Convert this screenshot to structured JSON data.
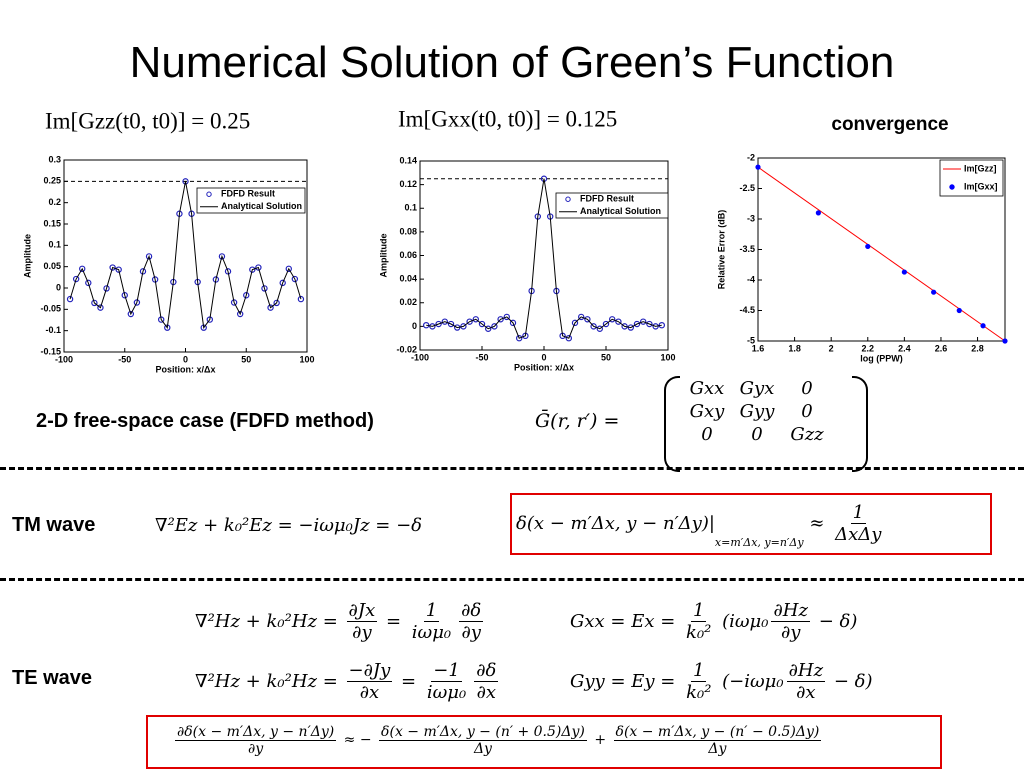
{
  "title": "Numerical Solution of Green’s Function",
  "chart_data": [
    {
      "type": "line",
      "title": "Im[Gzz(t0, t0)] = 0.25",
      "x_label": "Position: x/Δx",
      "y_label": "Amplitude",
      "xlim": [
        -100,
        100
      ],
      "xticks": [
        -100,
        -50,
        0,
        50,
        100
      ],
      "ylim": [
        -0.15,
        0.3
      ],
      "yticks": [
        -0.15,
        -0.1,
        -0.05,
        0,
        0.05,
        0.1,
        0.15,
        0.2,
        0.25,
        0.3
      ],
      "reference_line": 0.25,
      "grid": false,
      "legend": "upper right",
      "series": [
        {
          "name": "FDFD Result",
          "mode": "markers",
          "marker": "open-circle",
          "color": "#2222bb",
          "x": [
            -95,
            -90,
            -85,
            -80,
            -75,
            -70,
            -65,
            -60,
            -55,
            -50,
            -45,
            -40,
            -35,
            -30,
            -25,
            -20,
            -15,
            -10,
            -5,
            0,
            5,
            10,
            15,
            20,
            25,
            30,
            35,
            40,
            45,
            50,
            55,
            60,
            65,
            70,
            75,
            80,
            85,
            90,
            95
          ],
          "values": [
            -0.026,
            0.021,
            0.045,
            0.012,
            -0.035,
            -0.046,
            -0.001,
            0.048,
            0.043,
            -0.017,
            -0.061,
            -0.034,
            0.039,
            0.074,
            0.02,
            -0.074,
            -0.093,
            0.014,
            0.174,
            0.25,
            0.174,
            0.014,
            -0.093,
            -0.074,
            0.02,
            0.074,
            0.039,
            -0.034,
            -0.061,
            -0.017,
            0.043,
            0.048,
            -0.001,
            -0.046,
            -0.035,
            0.012,
            0.045,
            0.021,
            -0.026
          ]
        },
        {
          "name": "Analytical Solution",
          "mode": "line",
          "color": "#000000",
          "x": [
            -95,
            -90,
            -85,
            -80,
            -75,
            -70,
            -65,
            -60,
            -55,
            -50,
            -45,
            -40,
            -35,
            -30,
            -25,
            -20,
            -15,
            -10,
            -5,
            0,
            5,
            10,
            15,
            20,
            25,
            30,
            35,
            40,
            45,
            50,
            55,
            60,
            65,
            70,
            75,
            80,
            85,
            90,
            95
          ],
          "values": [
            -0.026,
            0.021,
            0.045,
            0.012,
            -0.035,
            -0.046,
            -0.001,
            0.048,
            0.043,
            -0.017,
            -0.061,
            -0.034,
            0.039,
            0.074,
            0.02,
            -0.074,
            -0.093,
            0.014,
            0.174,
            0.25,
            0.174,
            0.014,
            -0.093,
            -0.074,
            0.02,
            0.074,
            0.039,
            -0.034,
            -0.061,
            -0.017,
            0.043,
            0.048,
            -0.001,
            -0.046,
            -0.035,
            0.012,
            0.045,
            0.021,
            -0.026
          ]
        }
      ]
    },
    {
      "type": "line",
      "title": "Im[Gxx(t0, t0)] = 0.125",
      "x_label": "Position: x/Δx",
      "y_label": "Amplitude",
      "xlim": [
        -100,
        100
      ],
      "xticks": [
        -100,
        -50,
        0,
        50,
        100
      ],
      "ylim": [
        -0.02,
        0.14
      ],
      "yticks": [
        -0.02,
        0,
        0.02,
        0.04,
        0.06,
        0.08,
        0.1,
        0.12,
        0.14
      ],
      "reference_line": 0.125,
      "grid": false,
      "legend": "upper right",
      "series": [
        {
          "name": "FDFD Result",
          "mode": "markers",
          "marker": "open-circle",
          "color": "#2222bb",
          "x": [
            -95,
            -90,
            -85,
            -80,
            -75,
            -70,
            -65,
            -60,
            -55,
            -50,
            -45,
            -40,
            -35,
            -30,
            -25,
            -20,
            -15,
            -10,
            -5,
            0,
            5,
            10,
            15,
            20,
            25,
            30,
            35,
            40,
            45,
            50,
            55,
            60,
            65,
            70,
            75,
            80,
            85,
            90,
            95
          ],
          "values": [
            0.001,
            0,
            0.002,
            0.004,
            0.002,
            -0.001,
            0,
            0.004,
            0.006,
            0.002,
            -0.002,
            0,
            0.006,
            0.008,
            0.003,
            -0.01,
            -0.008,
            0.03,
            0.093,
            0.125,
            0.093,
            0.03,
            -0.008,
            -0.01,
            0.003,
            0.008,
            0.006,
            0,
            -0.002,
            0.002,
            0.006,
            0.004,
            0,
            -0.001,
            0.002,
            0.004,
            0.002,
            0,
            0.001
          ]
        },
        {
          "name": "Analytical Solution",
          "mode": "line",
          "color": "#000000",
          "x": [
            -95,
            -90,
            -85,
            -80,
            -75,
            -70,
            -65,
            -60,
            -55,
            -50,
            -45,
            -40,
            -35,
            -30,
            -25,
            -20,
            -15,
            -10,
            -5,
            0,
            5,
            10,
            15,
            20,
            25,
            30,
            35,
            40,
            45,
            50,
            55,
            60,
            65,
            70,
            75,
            80,
            85,
            90,
            95
          ],
          "values": [
            0.001,
            0,
            0.002,
            0.004,
            0.002,
            -0.001,
            0,
            0.004,
            0.006,
            0.002,
            -0.002,
            0,
            0.006,
            0.008,
            0.003,
            -0.01,
            -0.008,
            0.03,
            0.093,
            0.125,
            0.093,
            0.03,
            -0.008,
            -0.01,
            0.003,
            0.008,
            0.006,
            0,
            -0.002,
            0.002,
            0.006,
            0.004,
            0,
            -0.001,
            0.002,
            0.004,
            0.002,
            0,
            0.001
          ]
        }
      ]
    },
    {
      "type": "line",
      "title": "convergence",
      "x_label": "log (PPW)",
      "y_label": "Relative Error (dB)",
      "xlim": [
        1.6,
        2.95
      ],
      "xticks": [
        1.6,
        1.8,
        2,
        2.2,
        2.4,
        2.6,
        2.8
      ],
      "ylim": [
        -5,
        -2
      ],
      "yticks": [
        -5,
        -4.5,
        -4,
        -3.5,
        -3,
        -2.5,
        -2
      ],
      "grid": false,
      "legend": "upper right",
      "series": [
        {
          "name": "Im[Gzz]",
          "mode": "line",
          "color": "#ff0000",
          "x": [
            1.6,
            2.95
          ],
          "values": [
            -2.15,
            -5
          ]
        },
        {
          "name": "Im[Gxx]",
          "mode": "markers",
          "marker": "filled-circle",
          "color": "#0000ff",
          "x": [
            1.6,
            1.93,
            2.2,
            2.4,
            2.56,
            2.7,
            2.83,
            2.95
          ],
          "values": [
            -2.15,
            -2.9,
            -3.45,
            -3.87,
            -4.2,
            -4.5,
            -4.75,
            -5
          ]
        }
      ]
    }
  ],
  "caption": "2-D free-space case (FDFD method)",
  "matrix_equation": {
    "lhs": "Ḡ(r, r′) =",
    "rows": [
      [
        "Gxx",
        "Gyx",
        "0"
      ],
      [
        "Gxy",
        "Gyy",
        "0"
      ],
      [
        "0",
        "0",
        "Gzz"
      ]
    ]
  },
  "tm": {
    "label": "TM wave",
    "equation": [
      "∇²Ez + k₀²Ez = −iωμ₀Jz = −δ"
    ],
    "boxed_equation": [
      "δ(x − m′Δx, y − n′Δy)|",
      {
        "sub": "x=m′Δx, y=n′Δy"
      },
      " ≈ ",
      {
        "num": "1",
        "den": "ΔxΔy"
      }
    ]
  },
  "te": {
    "label": "TE wave",
    "equations": [
      [
        "∇²Hz + k₀²Hz = ",
        {
          "num": "∂Jx",
          "den": "∂y"
        },
        " = ",
        {
          "num": "1",
          "den": "iωμ₀"
        },
        {
          "num": "∂δ",
          "den": "∂y"
        }
      ],
      [
        "∇²Hz + k₀²Hz = ",
        {
          "num": "−∂Jy",
          "den": "∂x"
        },
        " = ",
        {
          "num": "−1",
          "den": "iωμ₀"
        },
        {
          "num": "∂δ",
          "den": "∂x"
        }
      ]
    ],
    "field_equations": [
      [
        "Gxx = Ex = ",
        {
          "num": "1",
          "den": "k₀²"
        },
        " (iωμ₀",
        {
          "num": "∂Hz",
          "den": "∂y"
        },
        " − δ)"
      ],
      [
        "Gyy = Ey = ",
        {
          "num": "1",
          "den": "k₀²"
        },
        " (−iωμ₀",
        {
          "num": "∂Hz",
          "den": "∂x"
        },
        " − δ)"
      ]
    ],
    "boxed_equation": [
      {
        "num": "∂δ(x − m′Δx, y − n′Δy)",
        "den": "∂y"
      },
      " ≈ − ",
      {
        "num": "δ(x − m′Δx, y − (n′ + 0.5)Δy)",
        "den": "Δy"
      },
      " + ",
      {
        "num": "δ(x − m′Δx, y − (n′ − 0.5)Δy)",
        "den": "Δy"
      }
    ]
  }
}
